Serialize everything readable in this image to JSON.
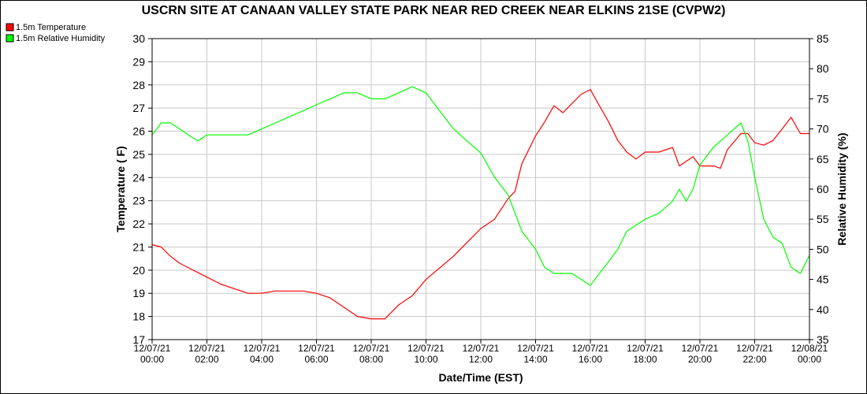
{
  "chart_data": {
    "type": "line",
    "title": "USCRN SITE AT CANAAN VALLEY STATE PARK NEAR RED CREEK NEAR ELKINS 21SE (CVPW2)",
    "xlabel": "Date/Time (EST)",
    "ylabel": "Temperature ( F)",
    "y2label": "Relative Humidity (%)",
    "ylim": [
      17,
      30
    ],
    "y2lim": [
      35,
      85
    ],
    "xlim": [
      0,
      24
    ],
    "yticks": [
      17,
      18,
      19,
      20,
      21,
      22,
      23,
      24,
      25,
      26,
      27,
      28,
      29,
      30
    ],
    "y2ticks": [
      35,
      40,
      45,
      50,
      55,
      60,
      65,
      70,
      75,
      80,
      85
    ],
    "xticks": [
      {
        "date": "12/07/21",
        "time": "00:00"
      },
      {
        "date": "12/07/21",
        "time": "02:00"
      },
      {
        "date": "12/07/21",
        "time": "04:00"
      },
      {
        "date": "12/07/21",
        "time": "06:00"
      },
      {
        "date": "12/07/21",
        "time": "08:00"
      },
      {
        "date": "12/07/21",
        "time": "10:00"
      },
      {
        "date": "12/07/21",
        "time": "12:00"
      },
      {
        "date": "12/07/21",
        "time": "14:00"
      },
      {
        "date": "12/07/21",
        "time": "16:00"
      },
      {
        "date": "12/07/21",
        "time": "18:00"
      },
      {
        "date": "12/07/21",
        "time": "20:00"
      },
      {
        "date": "12/07/21",
        "time": "22:00"
      },
      {
        "date": "12/08/21",
        "time": "00:00"
      }
    ],
    "grid": true,
    "legend_position": "top-left",
    "series": [
      {
        "name": "1.5m Temperature",
        "axis": "left",
        "color": "#ff0000",
        "x": [
          0,
          0.33,
          0.67,
          1,
          1.33,
          1.67,
          2,
          2.5,
          3,
          3.5,
          4,
          4.5,
          5,
          5.5,
          6,
          6.5,
          7,
          7.5,
          8,
          8.5,
          9,
          9.5,
          10,
          10.5,
          11,
          11.5,
          12,
          12.5,
          13,
          13.25,
          13.5,
          14,
          14.33,
          14.67,
          15,
          15.33,
          15.67,
          16,
          16.33,
          16.67,
          17,
          17.33,
          17.67,
          18,
          18.5,
          19,
          19.25,
          19.5,
          19.75,
          20,
          20.5,
          20.75,
          21,
          21.5,
          21.75,
          22,
          22.33,
          22.67,
          23,
          23.33,
          23.67,
          24
        ],
        "values": [
          21.1,
          21.0,
          20.6,
          20.3,
          20.1,
          19.9,
          19.7,
          19.4,
          19.2,
          19.0,
          19.0,
          19.1,
          19.1,
          19.1,
          19.0,
          18.8,
          18.4,
          18.0,
          17.9,
          17.9,
          18.5,
          18.9,
          19.6,
          20.1,
          20.6,
          21.2,
          21.8,
          22.2,
          23.1,
          23.4,
          24.6,
          25.8,
          26.4,
          27.1,
          26.8,
          27.2,
          27.6,
          27.8,
          27.1,
          26.4,
          25.6,
          25.1,
          24.8,
          25.1,
          25.1,
          25.3,
          24.5,
          24.7,
          24.9,
          24.5,
          24.5,
          24.4,
          25.2,
          25.9,
          25.9,
          25.5,
          25.4,
          25.6,
          26.1,
          26.6,
          25.9,
          25.9
        ]
      },
      {
        "name": "1.5m Relative Humidity",
        "axis": "right",
        "color": "#00ff00",
        "x": [
          0,
          0.33,
          0.67,
          1,
          1.33,
          1.67,
          2,
          2.5,
          3,
          3.5,
          4,
          4.5,
          5,
          5.5,
          6,
          6.5,
          7,
          7.5,
          8,
          8.5,
          9,
          9.5,
          10,
          10.5,
          11,
          11.5,
          12,
          12.5,
          13,
          13.25,
          13.5,
          14,
          14.33,
          14.67,
          15,
          15.33,
          15.67,
          16,
          16.33,
          16.67,
          17,
          17.33,
          17.67,
          18,
          18.5,
          19,
          19.25,
          19.5,
          19.75,
          20,
          20.5,
          20.75,
          21,
          21.5,
          21.75,
          22,
          22.33,
          22.67,
          23,
          23.33,
          23.67,
          24
        ],
        "values": [
          69,
          71,
          71,
          70,
          69,
          68,
          69,
          69,
          69,
          69,
          70,
          71,
          72,
          73,
          74,
          75,
          76,
          76,
          75,
          75,
          76,
          77,
          76,
          73,
          70,
          68,
          66,
          62,
          59,
          56,
          53,
          50,
          47,
          46,
          46,
          46,
          45,
          44,
          46,
          48,
          50,
          53,
          54,
          55,
          56,
          58,
          60,
          58,
          60,
          64,
          67,
          68,
          69,
          71,
          68,
          62,
          55,
          52,
          51,
          47,
          46,
          49
        ]
      }
    ]
  }
}
